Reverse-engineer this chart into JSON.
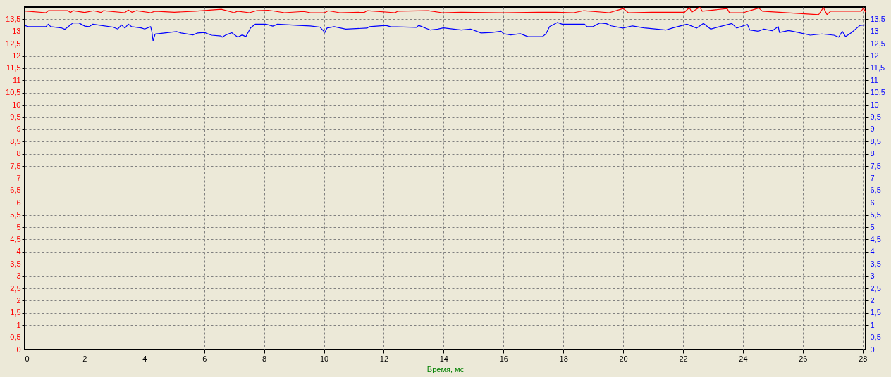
{
  "chart_data": {
    "type": "line",
    "xlabel": "Время, мс",
    "xlim": [
      0,
      28.1
    ],
    "xticks": [
      0,
      2,
      4,
      6,
      8,
      10,
      12,
      14,
      16,
      18,
      20,
      22,
      24,
      26,
      28
    ],
    "ylim": [
      0,
      14
    ],
    "yticks": [
      0,
      {
        "value": 0.5,
        "label": "0,5"
      },
      1,
      {
        "value": 1.5,
        "label": "1,5"
      },
      2,
      {
        "value": 2.5,
        "label": "2,5"
      },
      3,
      {
        "value": 3.5,
        "label": "3,5"
      },
      4,
      {
        "value": 4.5,
        "label": "4,5"
      },
      5,
      {
        "value": 5.5,
        "label": "5,5"
      },
      6,
      {
        "value": 6.5,
        "label": "6,5"
      },
      7,
      {
        "value": 7.5,
        "label": "7,5"
      },
      8,
      {
        "value": 8.5,
        "label": "8,5"
      },
      9,
      {
        "value": 9.5,
        "label": "9,5"
      },
      10,
      {
        "value": 10.5,
        "label": "10,5"
      },
      11,
      {
        "value": 11.5,
        "label": "11,5"
      },
      12,
      {
        "value": 12.5,
        "label": "12,5"
      },
      13,
      {
        "value": 13.5,
        "label": "13,5"
      }
    ],
    "y2lim": [
      0,
      14
    ],
    "y2ticks": [
      0,
      {
        "value": 0.5,
        "label": "0,5"
      },
      1,
      {
        "value": 1.5,
        "label": "1,5"
      },
      2,
      {
        "value": 2.5,
        "label": "2,5"
      },
      3,
      {
        "value": 3.5,
        "label": "3,5"
      },
      4,
      {
        "value": 4.5,
        "label": "4,5"
      },
      5,
      {
        "value": 5.5,
        "label": "5,5"
      },
      6,
      {
        "value": 6.5,
        "label": "6,5"
      },
      7,
      {
        "value": 7.5,
        "label": "7,5"
      },
      8,
      {
        "value": 8.5,
        "label": "8,5"
      },
      9,
      {
        "value": 9.5,
        "label": "9,5"
      },
      10,
      {
        "value": 10.5,
        "label": "10,5"
      },
      11,
      {
        "value": 11.5,
        "label": "11,5"
      },
      12,
      {
        "value": 12.5,
        "label": "12,5"
      },
      13,
      {
        "value": 13.5,
        "label": "13,5"
      }
    ],
    "grid": true,
    "series": [
      {
        "color": "#ff0000",
        "x": [
          0,
          0.71,
          0.79,
          1.45,
          1.53,
          1.61,
          2.0,
          2.31,
          2.55,
          2.63,
          3.34,
          3.46,
          3.58,
          3.73,
          4.21,
          4.36,
          5.0,
          5.7,
          6.57,
          7.0,
          7.11,
          7.51,
          7.74,
          8.14,
          8.68,
          9.32,
          9.55,
          10.02,
          10.14,
          10.53,
          11.36,
          11.44,
          12.38,
          12.46,
          13.48,
          13.95,
          14.58,
          16.0,
          17.17,
          17.74,
          18.35,
          18.67,
          19.53,
          20.0,
          20.17,
          20.95,
          22.05,
          22.21,
          22.29,
          22.56,
          22.64,
          23.47,
          23.55,
          24.01,
          24.53,
          24.65,
          26.53,
          26.69,
          26.81,
          26.93,
          27.95,
          28.03,
          28.1
        ],
        "values": [
          13.84,
          13.77,
          13.85,
          13.85,
          13.78,
          13.85,
          13.78,
          13.85,
          13.78,
          13.85,
          13.77,
          13.88,
          13.79,
          13.85,
          13.77,
          13.83,
          13.79,
          13.83,
          13.91,
          13.77,
          13.83,
          13.77,
          13.85,
          13.87,
          13.77,
          13.82,
          13.77,
          13.77,
          13.85,
          13.77,
          13.79,
          13.85,
          13.77,
          13.83,
          13.85,
          13.77,
          13.79,
          13.77,
          13.79,
          13.79,
          13.77,
          13.85,
          13.77,
          13.94,
          13.77,
          13.79,
          13.79,
          13.98,
          13.79,
          14.0,
          13.83,
          13.94,
          13.77,
          13.77,
          13.96,
          13.83,
          13.69,
          13.98,
          13.69,
          13.83,
          13.83,
          13.96,
          13.79
        ]
      },
      {
        "color": "#0000ff",
        "axis": "y2",
        "x": [
          0,
          0.12,
          0.71,
          0.79,
          0.87,
          1.22,
          1.34,
          1.46,
          1.61,
          1.81,
          2.01,
          2.16,
          2.28,
          2.55,
          2.95,
          3.11,
          3.23,
          3.35,
          3.46,
          3.57,
          3.89,
          4.01,
          4.21,
          4.25,
          4.29,
          4.36,
          4.52,
          5.07,
          5.23,
          5.62,
          5.78,
          6.02,
          6.1,
          6.25,
          6.56,
          6.6,
          6.72,
          6.92,
          7.12,
          7.27,
          7.39,
          7.43,
          7.55,
          7.71,
          8.06,
          8.29,
          8.45,
          9.16,
          9.54,
          9.87,
          10.03,
          10.1,
          10.34,
          10.73,
          11.44,
          11.52,
          12.07,
          12.22,
          13.09,
          13.17,
          13.56,
          13.8,
          13.99,
          14.59,
          14.9,
          15.25,
          15.61,
          15.92,
          16.0,
          16.24,
          16.56,
          16.82,
          17.3,
          17.42,
          17.54,
          17.8,
          17.96,
          18.71,
          18.79,
          18.99,
          19.22,
          19.44,
          19.6,
          19.99,
          20.31,
          20.7,
          21.42,
          21.66,
          22.13,
          22.45,
          22.68,
          22.92,
          23.63,
          23.79,
          24.15,
          24.23,
          24.51,
          24.7,
          24.98,
          25.18,
          25.22,
          25.53,
          25.85,
          26.25,
          26.64,
          27.04,
          27.2,
          27.32,
          27.43,
          27.63,
          27.91,
          28.1
        ],
        "values": [
          13.25,
          13.2,
          13.2,
          13.3,
          13.2,
          13.15,
          13.09,
          13.2,
          13.35,
          13.35,
          13.22,
          13.2,
          13.3,
          13.25,
          13.18,
          13.1,
          13.27,
          13.14,
          13.3,
          13.2,
          13.15,
          13.1,
          13.2,
          13.0,
          12.62,
          12.9,
          12.92,
          13.0,
          12.94,
          12.86,
          12.94,
          12.96,
          12.91,
          12.85,
          12.82,
          12.77,
          12.86,
          12.95,
          12.77,
          12.86,
          12.79,
          12.88,
          13.15,
          13.3,
          13.3,
          13.22,
          13.3,
          13.25,
          13.23,
          13.18,
          12.96,
          13.14,
          13.2,
          13.1,
          13.14,
          13.2,
          13.25,
          13.2,
          13.17,
          13.25,
          13.06,
          13.1,
          13.15,
          13.06,
          13.1,
          12.94,
          12.96,
          13.01,
          12.91,
          12.86,
          12.91,
          12.79,
          12.79,
          12.91,
          13.2,
          13.37,
          13.3,
          13.3,
          13.2,
          13.2,
          13.35,
          13.32,
          13.23,
          13.14,
          13.23,
          13.15,
          13.06,
          13.15,
          13.3,
          13.14,
          13.33,
          13.1,
          13.33,
          13.14,
          13.29,
          13.06,
          13.01,
          13.1,
          13.03,
          13.2,
          12.96,
          13.04,
          12.96,
          12.85,
          12.9,
          12.85,
          12.77,
          13.01,
          12.79,
          12.96,
          13.25,
          13.27
        ]
      }
    ]
  }
}
